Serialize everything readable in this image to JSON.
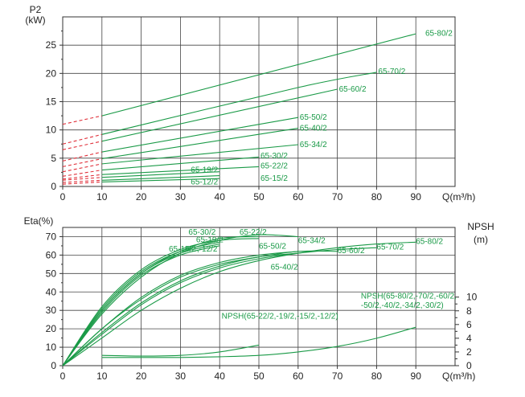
{
  "chart_data": [
    {
      "type": "line",
      "panel": "power",
      "ylabel": "P2",
      "yunit": "(kW)",
      "xlabel": "Q(m³/h)",
      "xlim": [
        0,
        100
      ],
      "ylim": [
        0,
        30
      ],
      "x_ticks": [
        "0",
        "10",
        "20",
        "30",
        "40",
        "50",
        "60",
        "70",
        "80",
        "90"
      ],
      "y_ticks": [
        "0",
        "5",
        "10",
        "15",
        "20",
        "25"
      ],
      "grid": true,
      "line_color": "#1a9a47",
      "dashed_color": "#e0303a",
      "series": [
        {
          "name": "65-80/2",
          "x": [
            10,
            90
          ],
          "y": [
            12.5,
            27
          ]
        },
        {
          "name": "65-70/2",
          "x": [
            10,
            60,
            80
          ],
          "y": [
            9.2,
            17.5,
            20.2
          ]
        },
        {
          "name": "65-60/2",
          "x": [
            10,
            70
          ],
          "y": [
            8.0,
            17.2
          ]
        },
        {
          "name": "65-50/2",
          "x": [
            10,
            60
          ],
          "y": [
            6.1,
            12.2
          ]
        },
        {
          "name": "65-40/2",
          "x": [
            10,
            60
          ],
          "y": [
            4.9,
            10.3
          ]
        },
        {
          "name": "65-34/2",
          "x": [
            10,
            60
          ],
          "y": [
            4.0,
            7.4
          ]
        },
        {
          "name": "65-30/2",
          "x": [
            10,
            50
          ],
          "y": [
            2.9,
            5.2
          ]
        },
        {
          "name": "65-22/2",
          "x": [
            10,
            50
          ],
          "y": [
            2.1,
            3.5
          ]
        },
        {
          "name": "65-19/2",
          "x": [
            10,
            40
          ],
          "y": [
            1.6,
            2.6
          ]
        },
        {
          "name": "65-15/2",
          "x": [
            10,
            40
          ],
          "y": [
            1.1,
            1.9
          ]
        },
        {
          "name": "65-12/2",
          "x": [
            10,
            40
          ],
          "y": [
            0.8,
            1.4
          ]
        }
      ],
      "dashed_start_y": [
        11.0,
        7.5,
        6.5,
        4.5,
        3.5,
        2.6,
        1.8,
        1.3,
        1.1,
        0.7,
        0.4
      ]
    },
    {
      "type": "line",
      "panel": "efficiency",
      "ylabel": "Eta(%)",
      "xlabel": "Q(m³/h)",
      "xlim": [
        0,
        100
      ],
      "ylim": [
        0,
        75
      ],
      "x_ticks": [
        "0",
        "10",
        "20",
        "30",
        "40",
        "50",
        "60",
        "70",
        "80",
        "90"
      ],
      "y_ticks": [
        "0",
        "10",
        "20",
        "30",
        "40",
        "50",
        "60",
        "70"
      ],
      "y2label": "NPSH",
      "y2unit": "(m)",
      "y2_ticks": [
        "0",
        "2",
        "4",
        "6",
        "8",
        "10"
      ],
      "y2lim": [
        0,
        10
      ],
      "grid": true,
      "line_color": "#1a9a47",
      "series": [
        {
          "name": "65-30/2",
          "x": [
            0,
            10,
            20,
            30,
            40,
            50
          ],
          "y": [
            0,
            32,
            52,
            63,
            68,
            69
          ]
        },
        {
          "name": "65-22/2",
          "x": [
            0,
            10,
            20,
            30,
            40,
            50
          ],
          "y": [
            0,
            30,
            50,
            62,
            69,
            70
          ]
        },
        {
          "name": "65-34/2",
          "x": [
            0,
            10,
            20,
            30,
            40,
            50,
            60
          ],
          "y": [
            0,
            28,
            48,
            61,
            68,
            71,
            70
          ]
        },
        {
          "name": "65-19/2",
          "x": [
            0,
            10,
            20,
            30,
            40
          ],
          "y": [
            0,
            31,
            51,
            62,
            67
          ]
        },
        {
          "name": "65-15/2",
          "x": [
            0,
            10,
            20,
            30,
            40
          ],
          "y": [
            0,
            30,
            50,
            61,
            66
          ]
        },
        {
          "name": "65-12/2",
          "x": [
            0,
            10,
            20,
            30,
            40
          ],
          "y": [
            0,
            29,
            49,
            60,
            65
          ]
        },
        {
          "name": "65-50/2",
          "x": [
            0,
            10,
            20,
            30,
            40,
            50,
            60
          ],
          "y": [
            0,
            20,
            37,
            49,
            56,
            60,
            62
          ]
        },
        {
          "name": "65-40/2",
          "x": [
            0,
            10,
            20,
            30,
            40,
            50,
            60
          ],
          "y": [
            0,
            18,
            34,
            46,
            54,
            59,
            61
          ]
        },
        {
          "name": "65-60/2",
          "x": [
            0,
            10,
            20,
            30,
            40,
            50,
            60,
            70
          ],
          "y": [
            0,
            20,
            36,
            48,
            55,
            59,
            62,
            62
          ]
        },
        {
          "name": "65-70/2",
          "x": [
            0,
            10,
            20,
            30,
            40,
            50,
            60,
            70,
            80
          ],
          "y": [
            0,
            17,
            33,
            45,
            53,
            58,
            61,
            63,
            64
          ]
        },
        {
          "name": "65-80/2",
          "x": [
            0,
            10,
            20,
            30,
            40,
            50,
            60,
            70,
            80,
            90
          ],
          "y": [
            0,
            15,
            30,
            42,
            51,
            57,
            61,
            64,
            66,
            67
          ]
        }
      ],
      "npsh_series": [
        {
          "name": "NPSH(65-22/2,-19/2,-15/2,-12/2)",
          "x": [
            10,
            20,
            30,
            40,
            50
          ],
          "y": [
            1.5,
            1.4,
            1.5,
            2.0,
            3.0
          ]
        },
        {
          "name": "NPSH(65-80/2,-70/2,-60/2,-50/2,-40/2,-34/2,-30/2)",
          "x": [
            10,
            20,
            30,
            40,
            50,
            60,
            70,
            80,
            90
          ],
          "y": [
            1.2,
            1.2,
            1.2,
            1.3,
            1.5,
            2.0,
            2.8,
            4.0,
            5.6
          ]
        }
      ]
    }
  ],
  "npsh_label_lines": [
    "NPSH(65-80/2,-70/2,-60/2,",
    "-50/2,-40/2,-34/2,-30/2)"
  ],
  "npsh_label_small": "NPSH(65-22/2,-19/2,-15/2,-12/2)"
}
